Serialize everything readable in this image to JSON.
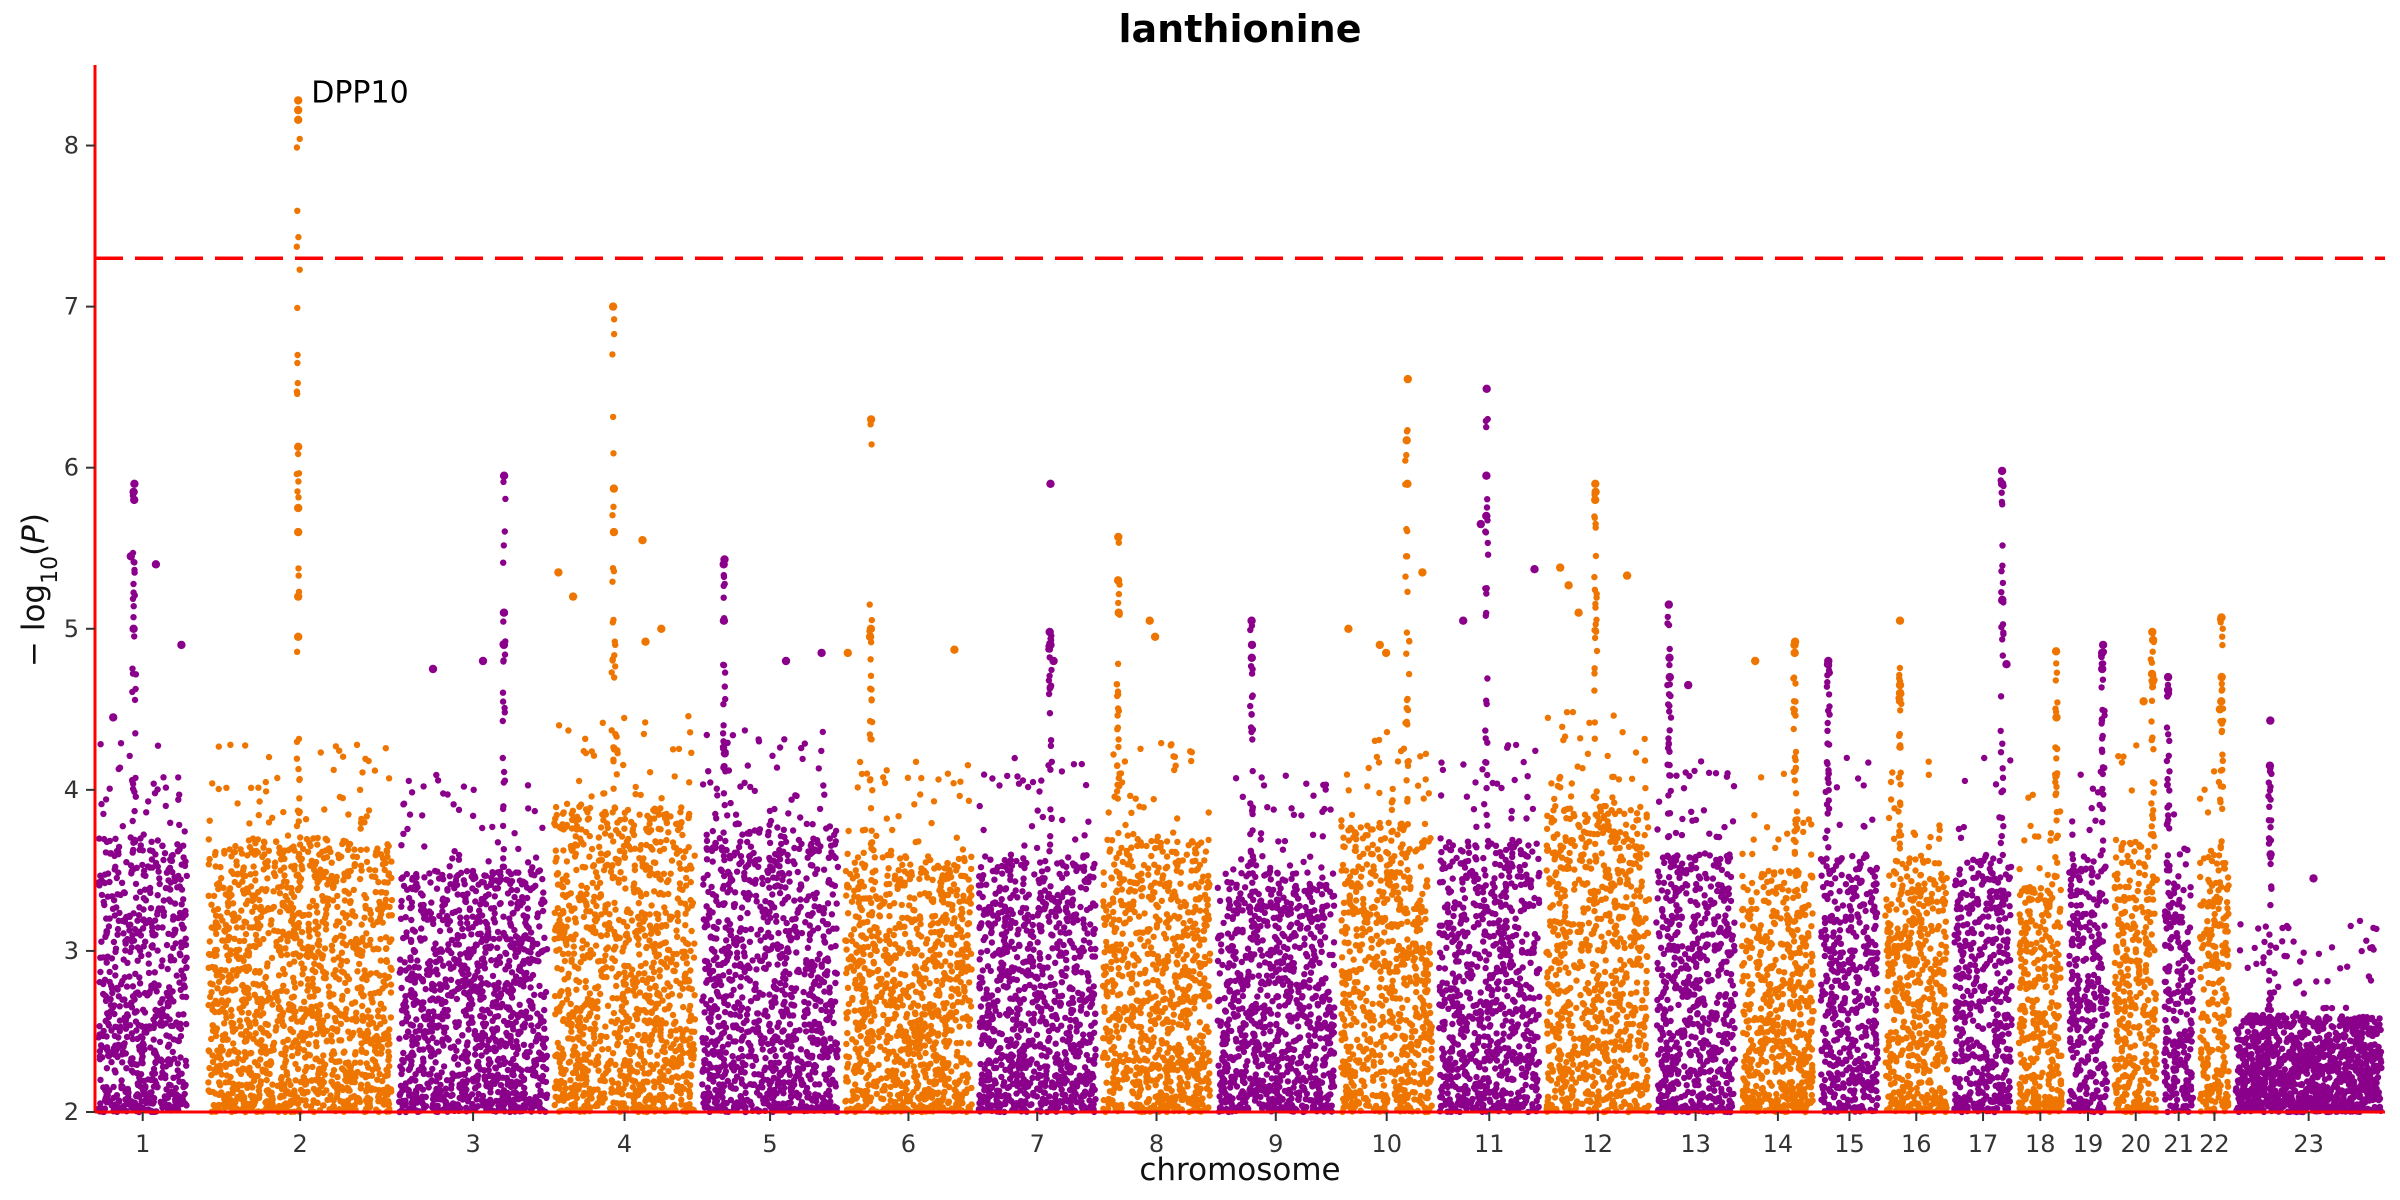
{
  "chart_data": {
    "type": "scatter",
    "subtype": "manhattan",
    "title": "lanthionine",
    "xlabel": "chromosome",
    "ylabel": "−log10(P)",
    "ylim": [
      2,
      8.5
    ],
    "yticks": [
      2,
      3,
      4,
      5,
      6,
      7,
      8
    ],
    "grid": false,
    "legend": "none",
    "colors": {
      "odd": "#8B008B",
      "even": "#EE7600",
      "axis": "#FF0000",
      "threshold": "#FF0000"
    },
    "threshold": {
      "y": 7.3,
      "style": "dashed"
    },
    "chromosomes": [
      {
        "label": "1",
        "range": [
          0.0,
          4.0
        ],
        "base_max": 3.7,
        "color": "odd",
        "highlights": [
          5.9,
          5.85,
          5.8,
          5.45,
          5.4,
          5.0,
          4.9,
          4.45
        ]
      },
      {
        "label": "2",
        "range": [
          4.6,
          12.6
        ],
        "base_max": 3.7,
        "color": "even",
        "highlights": [
          8.28,
          8.22,
          8.16,
          6.13,
          5.75,
          5.6,
          5.2,
          4.95
        ]
      },
      {
        "label": "3",
        "range": [
          12.6,
          19.1
        ],
        "base_max": 3.5,
        "color": "odd",
        "highlights": [
          5.95,
          5.1,
          4.9,
          4.8,
          4.75
        ]
      },
      {
        "label": "4",
        "range": [
          19.1,
          25.3
        ],
        "base_max": 3.9,
        "color": "even",
        "highlights": [
          7.0,
          5.87,
          5.6,
          5.55,
          5.35,
          5.2,
          5.0,
          4.92
        ]
      },
      {
        "label": "5",
        "range": [
          25.3,
          31.3
        ],
        "base_max": 3.8,
        "color": "odd",
        "highlights": [
          5.43,
          5.4,
          5.05,
          4.85,
          4.8
        ]
      },
      {
        "label": "6",
        "range": [
          31.3,
          36.9
        ],
        "base_max": 3.6,
        "color": "even",
        "highlights": [
          6.3,
          5.0,
          4.95,
          4.87,
          4.85
        ]
      },
      {
        "label": "7",
        "range": [
          36.9,
          42.1
        ],
        "base_max": 3.6,
        "color": "odd",
        "highlights": [
          5.9,
          4.98,
          4.9,
          4.8
        ]
      },
      {
        "label": "8",
        "range": [
          42.1,
          46.9
        ],
        "base_max": 3.7,
        "color": "even",
        "highlights": [
          5.57,
          5.3,
          5.1,
          5.05,
          4.95
        ]
      },
      {
        "label": "9",
        "range": [
          46.9,
          52.1
        ],
        "base_max": 3.5,
        "color": "odd",
        "highlights": [
          5.05,
          4.9,
          4.82
        ]
      },
      {
        "label": "10",
        "range": [
          52.1,
          56.2
        ],
        "base_max": 3.8,
        "color": "even",
        "highlights": [
          6.55,
          6.17,
          5.9,
          5.35,
          5.0,
          4.9,
          4.85
        ]
      },
      {
        "label": "11",
        "range": [
          56.2,
          60.7
        ],
        "base_max": 3.7,
        "color": "odd",
        "highlights": [
          6.49,
          5.95,
          5.7,
          5.65,
          5.37,
          5.05
        ]
      },
      {
        "label": "12",
        "range": [
          60.7,
          65.3
        ],
        "base_max": 3.9,
        "color": "even",
        "highlights": [
          5.9,
          5.85,
          5.8,
          5.38,
          5.33,
          5.27,
          5.1
        ]
      },
      {
        "label": "13",
        "range": [
          65.3,
          68.9
        ],
        "base_max": 3.6,
        "color": "odd",
        "highlights": [
          5.15,
          4.82,
          4.7,
          4.65
        ]
      },
      {
        "label": "14",
        "range": [
          68.9,
          72.2
        ],
        "base_max": 3.5,
        "color": "even",
        "highlights": [
          4.92,
          4.9,
          4.85,
          4.8
        ]
      },
      {
        "label": "15",
        "range": [
          72.2,
          74.9
        ],
        "base_max": 3.6,
        "color": "odd",
        "highlights": [
          4.8,
          4.78
        ]
      },
      {
        "label": "16",
        "range": [
          74.9,
          77.8
        ],
        "base_max": 3.6,
        "color": "even",
        "highlights": [
          5.05,
          4.65,
          4.6
        ]
      },
      {
        "label": "17",
        "range": [
          77.8,
          80.5
        ],
        "base_max": 3.6,
        "color": "odd",
        "highlights": [
          5.98,
          5.9,
          5.18,
          4.78
        ]
      },
      {
        "label": "18",
        "range": [
          80.5,
          82.6
        ],
        "base_max": 3.4,
        "color": "even",
        "highlights": [
          4.86,
          4.45
        ]
      },
      {
        "label": "19",
        "range": [
          82.6,
          84.5
        ],
        "base_max": 3.6,
        "color": "odd",
        "highlights": [
          4.9,
          4.85,
          4.75
        ]
      },
      {
        "label": "20",
        "range": [
          84.5,
          86.6
        ],
        "base_max": 3.7,
        "color": "even",
        "highlights": [
          4.98,
          4.93,
          4.72,
          4.55
        ]
      },
      {
        "label": "21",
        "range": [
          86.6,
          88.1
        ],
        "base_max": 3.4,
        "color": "odd",
        "highlights": [
          4.7,
          4.62
        ]
      },
      {
        "label": "22",
        "range": [
          88.1,
          89.6
        ],
        "base_max": 3.6,
        "color": "even",
        "highlights": [
          5.07,
          4.7,
          4.55,
          4.5
        ]
      },
      {
        "label": "23",
        "range": [
          89.6,
          96.0
        ],
        "base_max": 2.6,
        "color": "odd",
        "highlights": [
          4.43,
          4.15,
          3.6,
          3.45
        ]
      }
    ],
    "annotations": [
      {
        "text": "DPP10",
        "chromosome": "2",
        "y": 8.28
      }
    ]
  }
}
